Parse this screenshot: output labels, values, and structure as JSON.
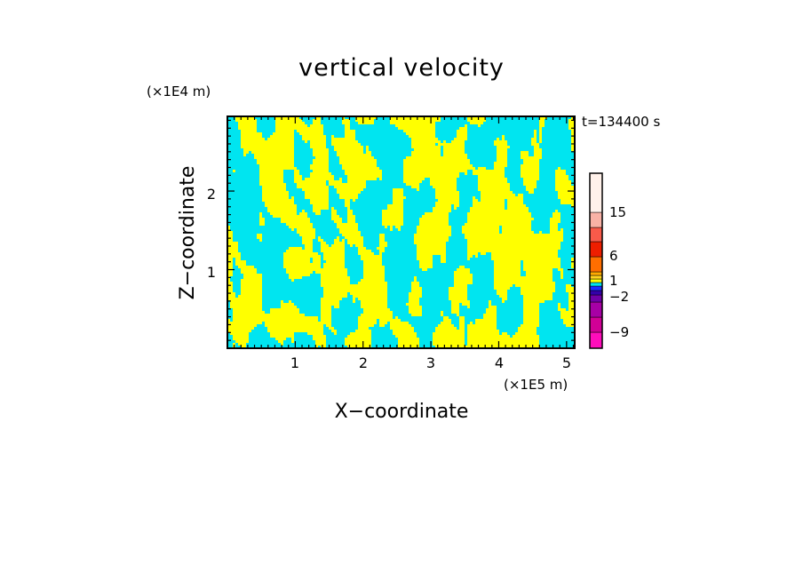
{
  "chart_data": {
    "type": "heatmap",
    "title": "vertical velocity",
    "xlabel": "X−coordinate",
    "ylabel": "Z−coordinate",
    "x_unit": "(×1E5 m)",
    "y_unit": "(×1E4 m)",
    "time_label": "t=134400 s",
    "xlim": [
      0,
      5.12
    ],
    "ylim": [
      0,
      2.95
    ],
    "x_ticks": [
      1,
      2,
      3,
      4,
      5
    ],
    "y_ticks": [
      1,
      2
    ],
    "x_tick_labels": [
      "1",
      "2",
      "3",
      "4",
      "5"
    ],
    "y_tick_labels": [
      "1",
      "2"
    ],
    "field_colors": {
      "positive": "#ffff00",
      "negative": "#00e5f0"
    },
    "colorbar": {
      "levels": [
        {
          "color": "#ff0dbb"
        },
        {
          "color": "#d10096"
        },
        {
          "color": "#a700a5"
        },
        {
          "color": "#7000a8"
        },
        {
          "color": "#3400aa"
        },
        {
          "color": "#1a2cff"
        },
        {
          "color": "#00e5f0"
        },
        {
          "color": "#ffff00"
        },
        {
          "color": "#ffd21e"
        },
        {
          "color": "#ffaa00"
        },
        {
          "color": "#ff6e00"
        },
        {
          "color": "#ee1e00"
        },
        {
          "color": "#f95a4a"
        },
        {
          "color": "#f9b2a6"
        },
        {
          "color": "#fff1ea"
        }
      ],
      "tick_labels": [
        "15",
        "6",
        "1",
        "−2",
        "−9"
      ]
    }
  }
}
